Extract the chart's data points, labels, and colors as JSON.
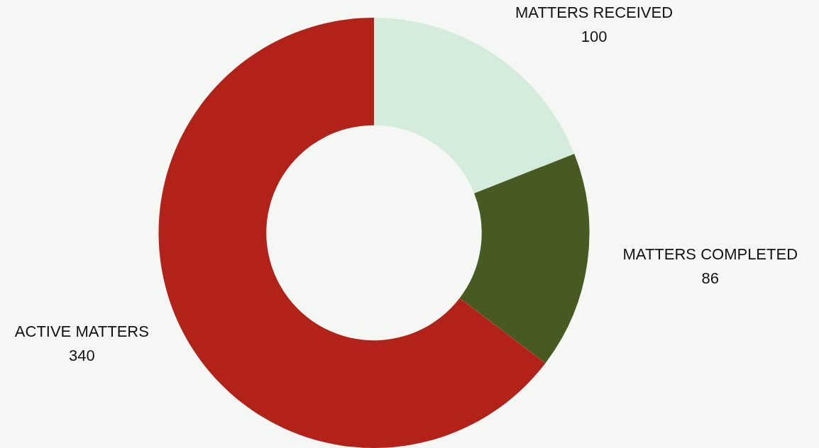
{
  "chart_data": {
    "type": "donut",
    "categories": [
      "MATTERS RECEIVED",
      "MATTERS COMPLETED",
      "ACTIVE MATTERS"
    ],
    "values": [
      100,
      86,
      340
    ],
    "colors": [
      "#d3ecdc",
      "#465a22",
      "#b22219"
    ],
    "data_labels": true,
    "legend": false
  }
}
